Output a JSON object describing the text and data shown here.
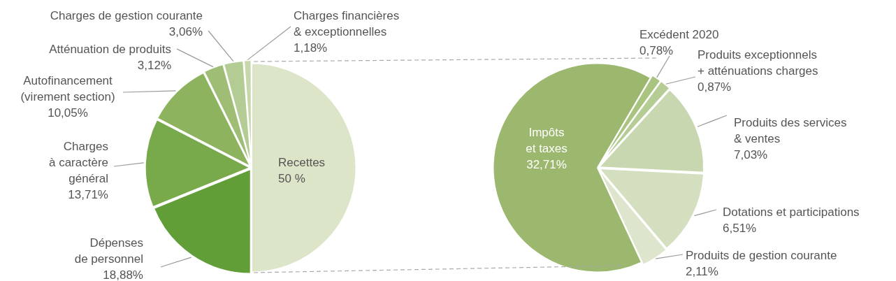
{
  "chart_data": [
    {
      "type": "pie",
      "categories": [
        "Recettes",
        "Dépenses de personnel",
        "Charges à caractère général",
        "Autofinancement (virement section)",
        "Atténuation de produits",
        "Charges de gestion courante",
        "Charges financières & exceptionnelles"
      ],
      "values": [
        50,
        18.88,
        13.71,
        10.05,
        3.12,
        3.06,
        1.18
      ],
      "value_labels": [
        "50 %",
        "18,88%",
        "13,71%",
        "10,05%",
        "3,12%",
        "3,06%",
        "1,18%"
      ],
      "colors": [
        "#dce5c8",
        "#629e38",
        "#78a94a",
        "#8db35e",
        "#9fbd75",
        "#b3cc93",
        "#c5d7ab"
      ],
      "legend": false
    },
    {
      "type": "pie",
      "categories": [
        "Impôts et taxes",
        "Excédent 2020",
        "Produits exceptionnels + atténuations charges",
        "Produits des services & ventes",
        "Dotations et participations",
        "Produits de gestion courante"
      ],
      "values": [
        32.71,
        0.78,
        0.87,
        7.03,
        6.51,
        2.11
      ],
      "value_labels": [
        "32,71%",
        "0,78%",
        "0,87%",
        "7,03%",
        "6,51%",
        "2,11%"
      ],
      "colors": [
        "#9bb86e",
        "#a9c47f",
        "#b5cd94",
        "#c9d7b0",
        "#d4dfc0",
        "#dde6cd"
      ],
      "legend": false
    }
  ]
}
